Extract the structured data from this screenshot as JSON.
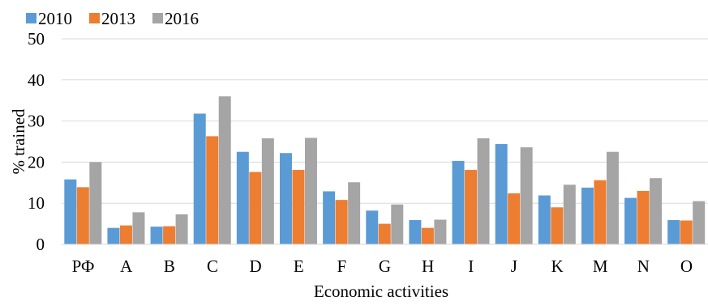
{
  "chart_data": {
    "type": "bar",
    "title": "",
    "xlabel": "Economic activities",
    "ylabel": "% trained",
    "ylim": [
      0,
      50
    ],
    "yticks": [
      0,
      10,
      20,
      30,
      40,
      50
    ],
    "grid": true,
    "legend_position": "top-left",
    "categories": [
      "РФ",
      "A",
      "B",
      "C",
      "D",
      "E",
      "F",
      "G",
      "H",
      "I",
      "J",
      "K",
      "M",
      "N",
      "O"
    ],
    "series": [
      {
        "name": "2010",
        "color": "#5B9BD5",
        "values": [
          15.8,
          4.0,
          4.3,
          31.8,
          22.5,
          22.2,
          12.9,
          8.2,
          5.9,
          20.3,
          24.4,
          11.9,
          13.8,
          11.3,
          5.9
        ]
      },
      {
        "name": "2013",
        "color": "#ED7D31",
        "values": [
          13.9,
          4.6,
          4.4,
          26.3,
          17.6,
          18.1,
          10.8,
          5.0,
          4.0,
          18.1,
          12.4,
          9.0,
          15.6,
          13.0,
          5.8
        ]
      },
      {
        "name": "2016",
        "color": "#A5A5A5",
        "values": [
          20.0,
          7.8,
          7.3,
          36.0,
          25.8,
          25.9,
          15.1,
          9.7,
          6.0,
          25.8,
          23.6,
          14.5,
          22.5,
          16.1,
          10.5
        ]
      }
    ]
  }
}
